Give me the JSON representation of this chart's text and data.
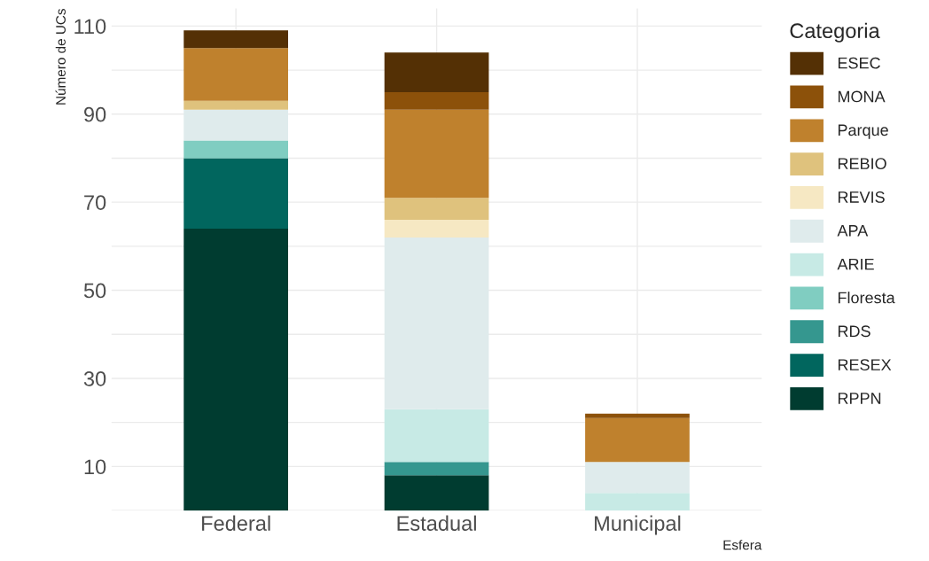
{
  "chart_data": {
    "type": "bar",
    "stacked": true,
    "xlabel": "Esfera",
    "ylabel": "Número de UCs",
    "legend_title": "Categoria",
    "legend": "right",
    "grid": true,
    "categories": [
      "Federal",
      "Estadual",
      "Municipal"
    ],
    "ylim": [
      0,
      114
    ],
    "yticks": [
      {
        "value": 0,
        "label": null
      },
      10,
      {
        "value": 20,
        "label": null
      },
      30,
      {
        "value": 40,
        "label": null
      },
      50,
      {
        "value": 60,
        "label": null
      },
      70,
      {
        "value": 80,
        "label": null
      },
      90,
      {
        "value": 100,
        "label": null
      },
      110
    ],
    "series": [
      {
        "name": "RPPN",
        "color": "#003c30",
        "values": [
          64,
          8,
          0
        ]
      },
      {
        "name": "RESEX",
        "color": "#01665e",
        "values": [
          16,
          0,
          0
        ]
      },
      {
        "name": "RDS",
        "color": "#35978f",
        "values": [
          0,
          3,
          0
        ]
      },
      {
        "name": "Floresta",
        "color": "#80cdc1",
        "values": [
          4,
          0,
          0
        ]
      },
      {
        "name": "ARIE",
        "color": "#c7eae5",
        "values": [
          0,
          12,
          4
        ]
      },
      {
        "name": "APA",
        "color": "#dfebec",
        "values": [
          7,
          39,
          7
        ]
      },
      {
        "name": "REVIS",
        "color": "#f6e8c3",
        "values": [
          0,
          4,
          0
        ]
      },
      {
        "name": "REBIO",
        "color": "#dfc27d",
        "values": [
          2,
          5,
          0
        ]
      },
      {
        "name": "Parque",
        "color": "#bf812d",
        "values": [
          12,
          20,
          10
        ]
      },
      {
        "name": "MONA",
        "color": "#8c510a",
        "values": [
          0,
          4,
          1
        ]
      },
      {
        "name": "ESEC",
        "color": "#543005",
        "values": [
          4,
          9,
          0
        ]
      }
    ]
  }
}
